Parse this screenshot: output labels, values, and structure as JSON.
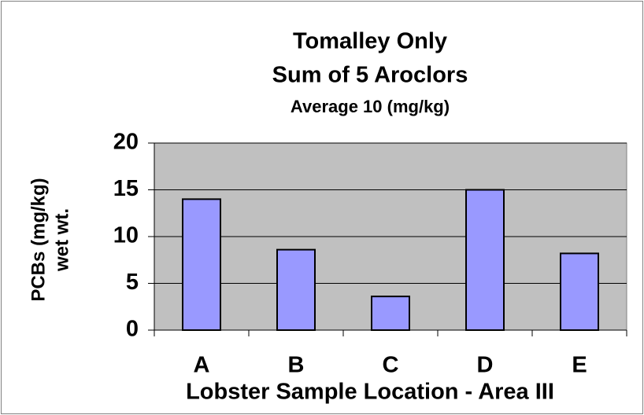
{
  "chart_data": {
    "type": "bar",
    "title": [
      "Tomalley Only",
      "Sum of 5 Aroclors"
    ],
    "subtitle": "Average 10 (mg/kg)",
    "ylabel": [
      "PCBs (mg/kg)",
      "wet wt."
    ],
    "xlabel": "Lobster Sample Location - Area III",
    "categories": [
      "A",
      "B",
      "C",
      "D",
      "E"
    ],
    "values": [
      14,
      8.6,
      3.6,
      15,
      8.2
    ],
    "color": "#9999ff",
    "ylim": [
      0,
      20
    ],
    "yticks": [
      0,
      5,
      10,
      15,
      20
    ],
    "grid": true
  }
}
